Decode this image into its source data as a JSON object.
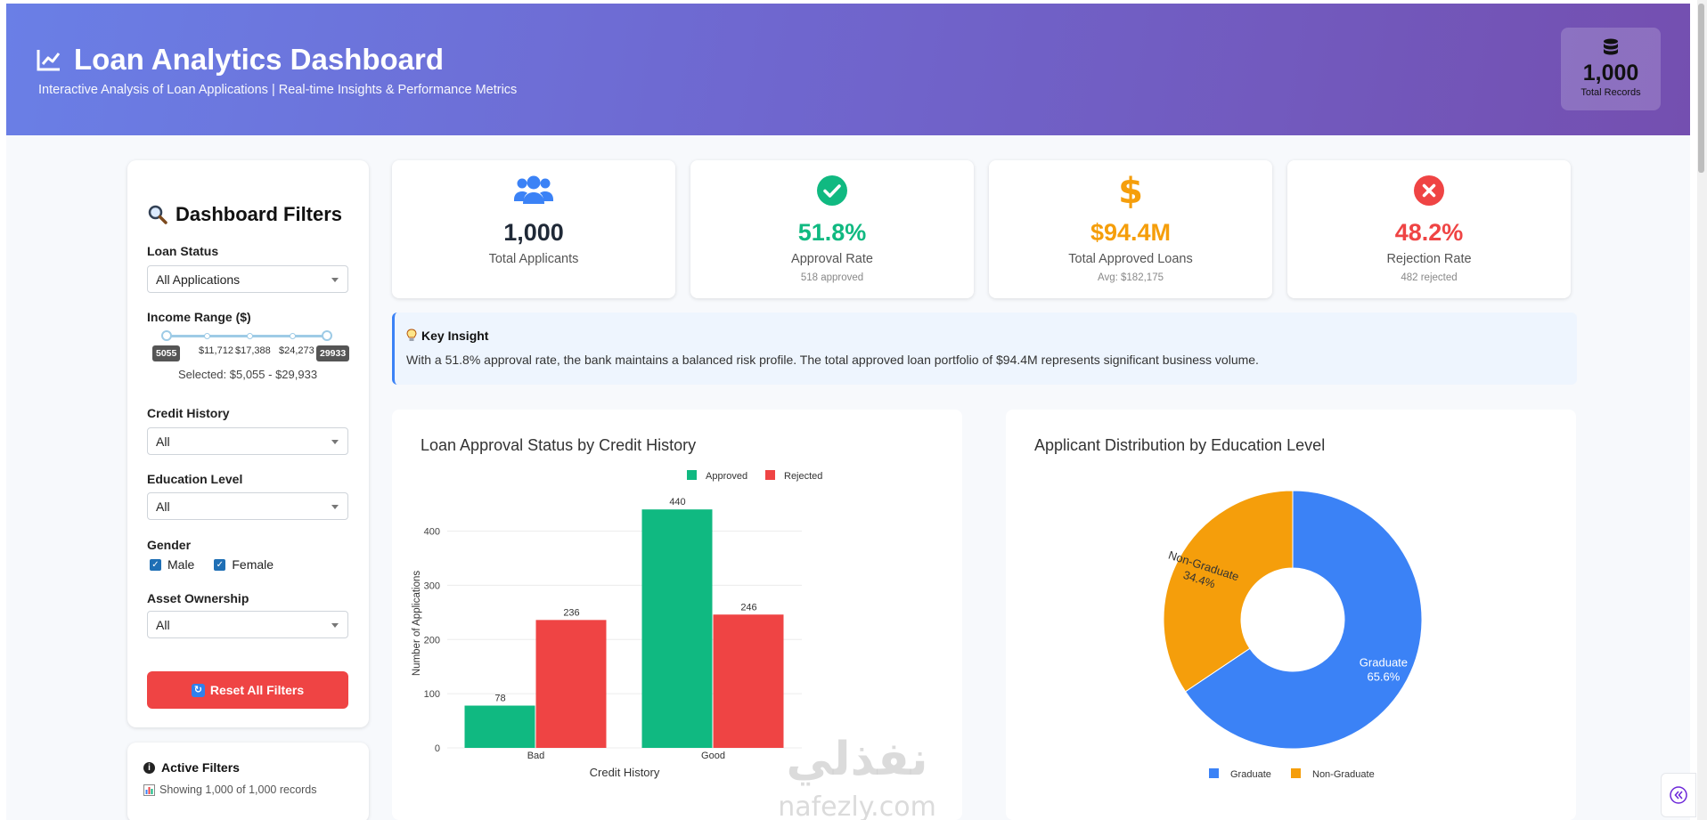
{
  "header": {
    "title": "Loan Analytics Dashboard",
    "subtitle": "Interactive Analysis of Loan Applications | Real-time Insights & Performance Metrics",
    "records_value": "1,000",
    "records_label": "Total Records"
  },
  "sidebar": {
    "title": "Dashboard Filters",
    "loan_status": {
      "label": "Loan Status",
      "value": "All Applications"
    },
    "income_range": {
      "label": "Income Range ($)",
      "min_value": "5055",
      "max_value": "29933",
      "marks": [
        "$11,712",
        "$17,388",
        "$24,273"
      ],
      "selected": "Selected: $5,055 - $29,933"
    },
    "credit_history": {
      "label": "Credit History",
      "value": "All"
    },
    "education_level": {
      "label": "Education Level",
      "value": "All"
    },
    "gender": {
      "label": "Gender",
      "options": [
        "Male",
        "Female"
      ]
    },
    "asset_ownership": {
      "label": "Asset Ownership",
      "value": "All"
    },
    "reset_label": "Reset All Filters"
  },
  "active_filters": {
    "title": "Active Filters",
    "text": "Showing 1,000 of 1,000 records"
  },
  "cards": [
    {
      "value": "1,000",
      "label": "Total Applicants",
      "sub": "",
      "color": "#111111",
      "icon": "users-icon"
    },
    {
      "value": "51.8%",
      "label": "Approval Rate",
      "sub": "518 approved",
      "color": "#10b981",
      "icon": "check-circle-icon"
    },
    {
      "value": "$94.4M",
      "label": "Total Approved Loans",
      "sub": "Avg: $182,175",
      "color": "#f59e0b",
      "icon": "dollar-icon"
    },
    {
      "value": "48.2%",
      "label": "Rejection Rate",
      "sub": "482 rejected",
      "color": "#ef4444",
      "icon": "x-circle-icon"
    }
  ],
  "insight": {
    "title": "Key Insight",
    "text": "With a 51.8% approval rate, the bank maintains a balanced risk profile. The total approved loan portfolio of $94.4M represents significant business volume."
  },
  "chart_data": [
    {
      "type": "bar",
      "title": "Loan Approval Status by Credit History",
      "xlabel": "Credit History",
      "ylabel": "Number of Applications",
      "categories": [
        "Bad",
        "Good"
      ],
      "series": [
        {
          "name": "Approved",
          "values": [
            78,
            440
          ],
          "color": "#10b981"
        },
        {
          "name": "Rejected",
          "values": [
            236,
            246
          ],
          "color": "#ef4444"
        }
      ],
      "ylim": [
        0,
        460
      ],
      "yticks": [
        0,
        100,
        200,
        300,
        400
      ],
      "legend": "top-right",
      "grid": true
    },
    {
      "type": "pie",
      "title": "Applicant Distribution by Education Level",
      "labels": [
        "Graduate",
        "Non-Graduate"
      ],
      "values": [
        65.6,
        34.4
      ],
      "value_labels": [
        "65.6%",
        "34.4%"
      ],
      "colors": [
        "#3b82f6",
        "#f59e0b"
      ],
      "donut": true,
      "legend": "bottom"
    }
  ],
  "watermark": {
    "arabic": "نفذلي",
    "latin": "nafezly.com"
  }
}
